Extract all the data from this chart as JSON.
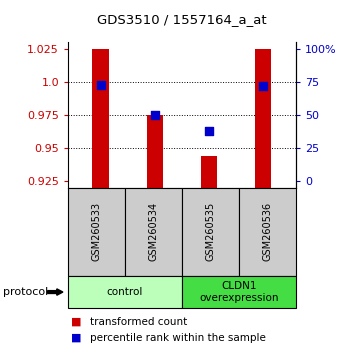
{
  "title": "GDS3510 / 1557164_a_at",
  "samples": [
    "GSM260533",
    "GSM260534",
    "GSM260535",
    "GSM260536"
  ],
  "transformed_counts": [
    1.025,
    0.975,
    0.944,
    1.025
  ],
  "bar_bottom": 0.92,
  "percentile_ranks": [
    0.998,
    0.975,
    0.963,
    0.997
  ],
  "ylim": [
    0.92,
    1.03
  ],
  "yticks_left": [
    0.925,
    0.95,
    0.975,
    1.0,
    1.025
  ],
  "yticks_right_vals": [
    0,
    25,
    50,
    75,
    100
  ],
  "yticks_right_pos": [
    0.925,
    0.95,
    0.975,
    1.0,
    1.025
  ],
  "bar_color": "#cc0000",
  "dot_color": "#0000cc",
  "bar_width": 0.3,
  "groups": [
    {
      "label": "control",
      "samples": [
        0,
        1
      ],
      "color": "#bbffbb"
    },
    {
      "label": "CLDN1\noverexpression",
      "samples": [
        2,
        3
      ],
      "color": "#44dd44"
    }
  ],
  "protocol_label": "protocol",
  "left_tick_color": "#cc0000",
  "right_tick_color": "#0000cc",
  "grid_color": "#000000",
  "bg_color": "#ffffff",
  "sample_box_color": "#cccccc",
  "legend_red_label": "transformed count",
  "legend_blue_label": "percentile rank within the sample",
  "dot_size": 30,
  "gridlines": [
    1.0,
    0.975,
    0.95
  ]
}
